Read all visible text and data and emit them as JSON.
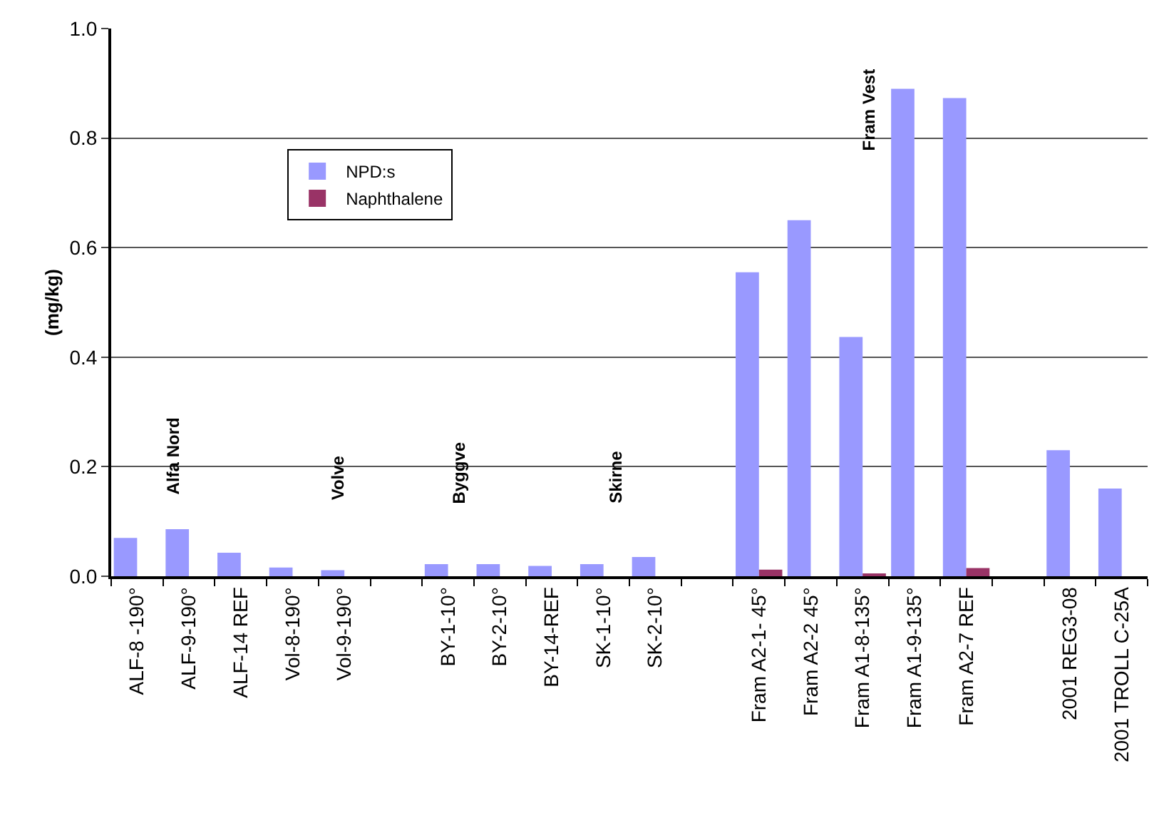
{
  "chart_data": {
    "type": "bar",
    "ylabel": "(mg/kg)",
    "categories": [
      "ALF-8 -190°",
      "ALF-9-190°",
      "ALF-14 REF",
      "Vol-8-190°",
      "Vol-9-190°",
      null,
      "BY-1-10°",
      "BY-2-10°",
      "BY-14-REF",
      "SK-1-10°",
      "SK-2-10°",
      null,
      "Fram A2-1- 45°",
      "Fram A2-2 45°",
      "Fram A1-8-135°",
      "Fram A1-9-135°",
      "Fram A2-7 REF",
      null,
      "2001 REG3-08",
      "2001 TROLL C-25A"
    ],
    "series": [
      {
        "name": "NPD:s",
        "color": "#9999ff",
        "values": [
          0.07,
          0.086,
          0.043,
          0.016,
          0.011,
          null,
          0.022,
          0.022,
          0.019,
          0.022,
          0.035,
          null,
          0.555,
          0.65,
          0.437,
          0.89,
          0.873,
          null,
          0.23,
          0.16
        ]
      },
      {
        "name": "Naphthalene",
        "color": "#993366",
        "values": [
          null,
          null,
          null,
          null,
          null,
          null,
          null,
          null,
          null,
          null,
          null,
          null,
          0.012,
          null,
          0.004,
          null,
          0.015,
          null,
          null,
          null
        ]
      }
    ],
    "ylim": [
      0,
      1.0
    ],
    "yticks": [
      {
        "value": 0,
        "label": "0.0"
      },
      {
        "value": 0.2,
        "label": "0.2"
      },
      {
        "value": 0.4,
        "label": "0.4"
      },
      {
        "value": 0.6,
        "label": "0.6"
      },
      {
        "value": 0.8,
        "label": "0.8"
      },
      {
        "value": 1.0,
        "label": "1.0"
      }
    ],
    "grid": "y",
    "legend": "top left",
    "annotations": [
      "Alfa Nord",
      "Volve",
      "Byggve",
      "Skirne",
      "Fram Vest"
    ]
  }
}
